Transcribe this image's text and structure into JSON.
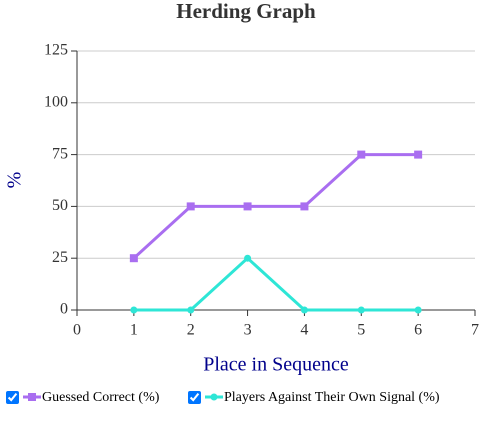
{
  "chart_data": {
    "type": "line",
    "title": "Herding Graph",
    "x_label": "Place in Sequence",
    "y_label": "%",
    "x": [
      1,
      2,
      3,
      4,
      5,
      6
    ],
    "series": [
      {
        "name": "Guessed Correct (%)",
        "color": "#a96ef0",
        "marker": "square",
        "values": [
          25,
          50,
          50,
          50,
          75,
          75
        ]
      },
      {
        "name": "Players Against Their Own Signal (%)",
        "color": "#2ee6d6",
        "marker": "circle",
        "values": [
          0,
          0,
          25,
          0,
          0,
          0
        ]
      }
    ],
    "xlim": [
      0,
      7
    ],
    "xticks": [
      0,
      1,
      2,
      3,
      4,
      5,
      6,
      7
    ],
    "ylim": [
      0,
      125
    ],
    "yticks": [
      0,
      25,
      50,
      75,
      100,
      125
    ],
    "grid": true
  }
}
